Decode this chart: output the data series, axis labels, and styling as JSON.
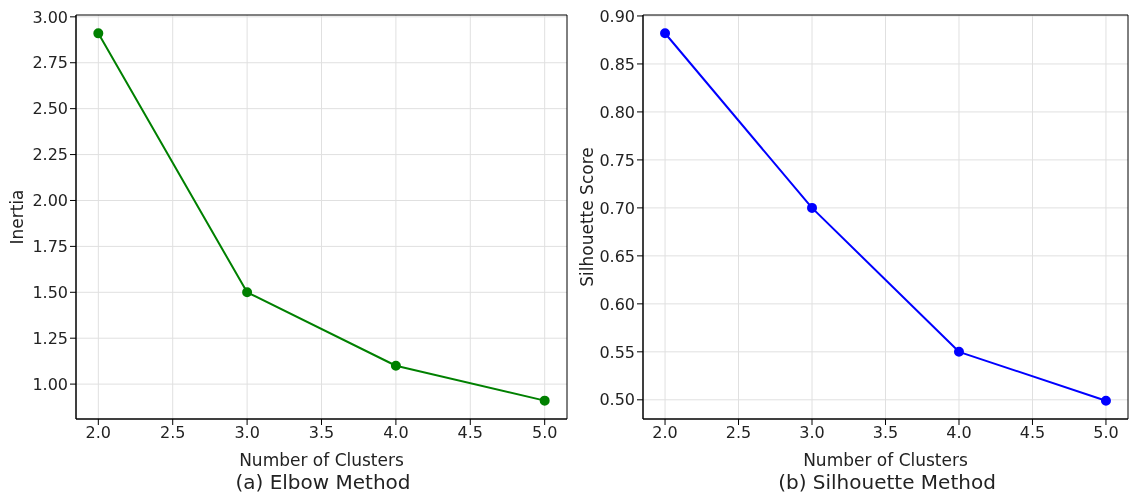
{
  "chart_data": [
    {
      "type": "line",
      "title": "(a) Elbow Method",
      "xlabel": "Number of Clusters",
      "ylabel": "Inertia",
      "x": [
        2,
        3,
        4,
        5
      ],
      "series": [
        {
          "color": "#008000",
          "values": [
            2.91,
            1.5,
            1.1,
            0.91
          ]
        }
      ],
      "xlim": [
        1.85,
        5.15
      ],
      "xticks": [
        {
          "value": 2,
          "label": "2.0"
        },
        {
          "value": 2.5,
          "label": "2.5"
        },
        {
          "value": 3,
          "label": "3.0"
        },
        {
          "value": 3.5,
          "label": "3.5"
        },
        {
          "value": 4,
          "label": "4.0"
        },
        {
          "value": 4.5,
          "label": "4.5"
        },
        {
          "value": 5,
          "label": "5.0"
        }
      ],
      "ylim": [
        0.81,
        3.01
      ],
      "yticks": [
        {
          "value": 1,
          "label": "1.00"
        },
        {
          "value": 1.25,
          "label": "1.25"
        },
        {
          "value": 1.5,
          "label": "1.50"
        },
        {
          "value": 1.75,
          "label": "1.75"
        },
        {
          "value": 2,
          "label": "2.00"
        },
        {
          "value": 2.25,
          "label": "2.25"
        },
        {
          "value": 2.5,
          "label": "2.50"
        },
        {
          "value": 2.75,
          "label": "2.75"
        },
        {
          "value": 3,
          "label": "3.00"
        }
      ],
      "grid": true,
      "marker": "circle",
      "line_style": "solid"
    },
    {
      "type": "line",
      "title": "(b) Silhouette Method",
      "xlabel": "Number of Clusters",
      "ylabel": "Silhouette Score",
      "x": [
        2,
        3,
        4,
        5
      ],
      "series": [
        {
          "color": "#0000ff",
          "values": [
            0.882,
            0.7,
            0.55,
            0.499
          ]
        }
      ],
      "xlim": [
        1.85,
        5.15
      ],
      "xticks": [
        {
          "value": 2,
          "label": "2.0"
        },
        {
          "value": 2.5,
          "label": "2.5"
        },
        {
          "value": 3,
          "label": "3.0"
        },
        {
          "value": 3.5,
          "label": "3.5"
        },
        {
          "value": 4,
          "label": "4.0"
        },
        {
          "value": 4.5,
          "label": "4.5"
        },
        {
          "value": 5,
          "label": "5.0"
        }
      ],
      "ylim": [
        0.48,
        0.901
      ],
      "yticks": [
        {
          "value": 0.5,
          "label": "0.50"
        },
        {
          "value": 0.55,
          "label": "0.55"
        },
        {
          "value": 0.6,
          "label": "0.60"
        },
        {
          "value": 0.65,
          "label": "0.65"
        },
        {
          "value": 0.7,
          "label": "0.70"
        },
        {
          "value": 0.75,
          "label": "0.75"
        },
        {
          "value": 0.8,
          "label": "0.80"
        },
        {
          "value": 0.85,
          "label": "0.85"
        },
        {
          "value": 0.9,
          "label": "0.90"
        }
      ],
      "grid": true,
      "marker": "circle",
      "line_style": "solid"
    }
  ]
}
